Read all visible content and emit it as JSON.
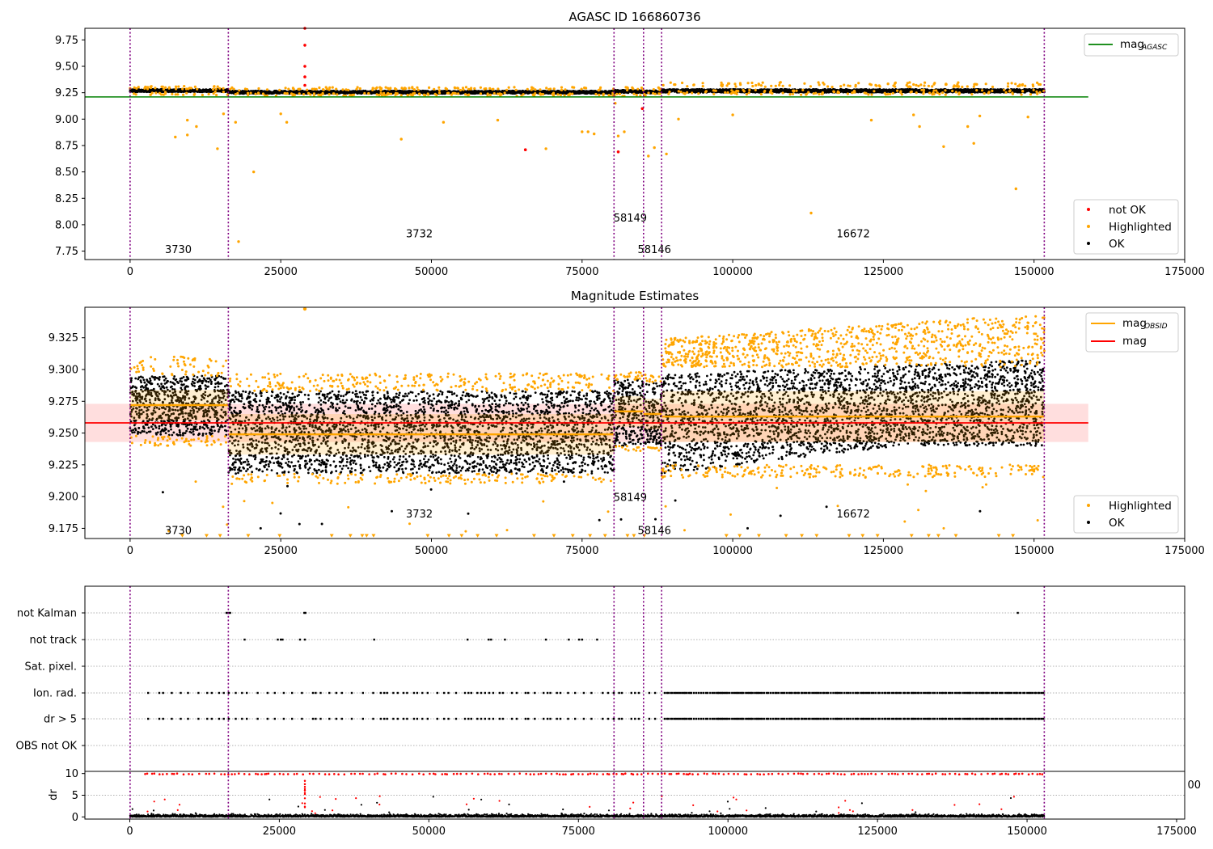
{
  "chart_data": [
    {
      "id": "agasc",
      "type": "scatter",
      "title": "AGASC ID 166860736",
      "xlim": [
        -7500,
        175000
      ],
      "ylim": [
        7.67,
        9.86
      ],
      "xticks": [
        "0",
        "25000",
        "50000",
        "75000",
        "100000",
        "125000",
        "150000",
        "175000"
      ],
      "yticks": [
        "7.75",
        "8.00",
        "8.25",
        "8.50",
        "8.75",
        "9.00",
        "9.25",
        "9.50",
        "9.75"
      ],
      "obsid_boundaries": [
        0,
        16300,
        80300,
        85200,
        88200,
        151700
      ],
      "obsid_labels": [
        {
          "text": "3730",
          "x": 8000,
          "y": 7.76
        },
        {
          "text": "3732",
          "x": 48000,
          "y": 7.91
        },
        {
          "text": "58149",
          "x": 83000,
          "y": 8.06
        },
        {
          "text": "58146",
          "x": 87000,
          "y": 7.76
        },
        {
          "text": "16672",
          "x": 120000,
          "y": 7.91
        }
      ],
      "mag_agasc": 9.21,
      "legend": {
        "top_right": [
          {
            "label": "mag",
            "sub": "AGASC",
            "color": "#008000"
          }
        ],
        "bottom_right": [
          {
            "label": "not OK",
            "color": "#ff0000"
          },
          {
            "label": "Highlighted",
            "color": "#ffa500"
          },
          {
            "label": "OK",
            "color": "#000000"
          }
        ]
      },
      "segments": [
        {
          "x0": 0,
          "x1": 16300,
          "ok_center": 9.27,
          "ok_spread": 0.012,
          "hl_center": 9.27,
          "hl_spread": 0.02
        },
        {
          "x0": 16300,
          "x1": 80300,
          "ok_center": 9.255,
          "ok_spread": 0.012,
          "hl_center": 9.26,
          "hl_spread": 0.02
        },
        {
          "x0": 80300,
          "x1": 85200,
          "ok_center": 9.262,
          "ok_spread": 0.012,
          "hl_center": 9.26,
          "hl_spread": 0.02
        },
        {
          "x0": 85200,
          "x1": 88200,
          "ok_center": 9.258,
          "ok_spread": 0.012,
          "hl_center": 9.26,
          "hl_spread": 0.02
        },
        {
          "x0": 88200,
          "x1": 151700,
          "ok_center": 9.268,
          "ok_spread": 0.014,
          "hl_center": 9.29,
          "hl_spread": 0.03
        }
      ],
      "outliers_highlighted": [
        [
          7500,
          8.83
        ],
        [
          9500,
          8.85
        ],
        [
          9500,
          8.99
        ],
        [
          11000,
          8.93
        ],
        [
          14500,
          8.72
        ],
        [
          15500,
          9.05
        ],
        [
          17500,
          8.97
        ],
        [
          18000,
          7.84
        ],
        [
          20500,
          8.5
        ],
        [
          25000,
          9.05
        ],
        [
          26000,
          8.97
        ],
        [
          45000,
          8.81
        ],
        [
          52000,
          8.97
        ],
        [
          61000,
          8.99
        ],
        [
          69000,
          8.72
        ],
        [
          75000,
          8.88
        ],
        [
          76000,
          8.88
        ],
        [
          77000,
          8.86
        ],
        [
          80500,
          9.15
        ],
        [
          81000,
          8.84
        ],
        [
          82000,
          8.88
        ],
        [
          86000,
          8.65
        ],
        [
          87000,
          8.73
        ],
        [
          89000,
          8.67
        ],
        [
          91000,
          9.0
        ],
        [
          100000,
          9.04
        ],
        [
          113000,
          8.11
        ],
        [
          123000,
          8.99
        ],
        [
          130000,
          9.04
        ],
        [
          131000,
          8.93
        ],
        [
          135000,
          8.74
        ],
        [
          139000,
          8.93
        ],
        [
          140000,
          8.77
        ],
        [
          141000,
          9.03
        ],
        [
          147000,
          8.34
        ],
        [
          149000,
          9.02
        ]
      ],
      "outliers_not_ok": [
        [
          29000,
          9.86
        ],
        [
          29000,
          9.7
        ],
        [
          29000,
          9.5
        ],
        [
          29000,
          9.4
        ],
        [
          29000,
          9.32
        ],
        [
          65600,
          8.71
        ],
        [
          81000,
          8.69
        ],
        [
          85000,
          9.1
        ]
      ]
    },
    {
      "id": "mag_estimates",
      "type": "scatter",
      "title": "Magnitude Estimates",
      "xlim": [
        -7500,
        175000
      ],
      "ylim": [
        9.167,
        9.349
      ],
      "xticks": [
        "0",
        "25000",
        "50000",
        "75000",
        "100000",
        "125000",
        "150000",
        "175000"
      ],
      "yticks": [
        "9.175",
        "9.200",
        "9.225",
        "9.250",
        "9.275",
        "9.300",
        "9.325"
      ],
      "obsid_boundaries": [
        0,
        16300,
        80300,
        85200,
        88200,
        151700
      ],
      "obsid_labels": [
        {
          "text": "3730",
          "x": 8000,
          "y": 9.173
        },
        {
          "text": "3732",
          "x": 48000,
          "y": 9.186
        },
        {
          "text": "58149",
          "x": 83000,
          "y": 9.199
        },
        {
          "text": "58146",
          "x": 87000,
          "y": 9.173
        },
        {
          "text": "16672",
          "x": 120000,
          "y": 9.186
        }
      ],
      "mag": 9.258,
      "mag_band": [
        9.243,
        9.273
      ],
      "mag_obsid": [
        {
          "x0": 0,
          "x1": 16300,
          "y": 9.272,
          "std": 0.012
        },
        {
          "x0": 16300,
          "x1": 80300,
          "y": 9.249,
          "std": 0.016
        },
        {
          "x0": 80300,
          "x1": 85200,
          "y": 9.267,
          "std": 0.012
        },
        {
          "x0": 85200,
          "x1": 88200,
          "y": 9.265,
          "std": 0.012
        },
        {
          "x0": 88200,
          "x1": 151700,
          "y": 9.263,
          "std": 0.02
        }
      ],
      "legend": {
        "top_right": [
          {
            "label": "mag",
            "sub": "OBSID",
            "color": "#ffa500"
          },
          {
            "label": "mag",
            "sub": "",
            "color": "#ff0000"
          }
        ],
        "bottom_right": [
          {
            "label": "Highlighted",
            "color": "#ffa500"
          },
          {
            "label": "OK",
            "color": "#000000"
          }
        ]
      }
    },
    {
      "id": "flags",
      "type": "scatter",
      "title": "",
      "xlim": [
        -7500,
        175000
      ],
      "categories": [
        "not Kalman",
        "not track",
        "Sat. pixel.",
        "Ion. rad.",
        "dr > 5",
        "OBS not OK"
      ],
      "dr_ylabel": "dr",
      "dr_ylim": [
        -0.5,
        10.5
      ],
      "dr_yticks": [
        "0",
        "5",
        "10"
      ],
      "xticks": [
        "0",
        "25000",
        "50000",
        "75000",
        "100000",
        "125000",
        "150000",
        "175000"
      ],
      "overlap_text": "00",
      "obsid_boundaries": [
        0,
        16300,
        80300,
        85200,
        88200,
        151700
      ],
      "flag_points": {
        "not Kalman": [
          16000,
          16300,
          16600,
          28900,
          29100,
          147300
        ],
        "not track": [
          19000,
          24500,
          25000,
          25300,
          28200,
          29000,
          40500,
          56000,
          59500,
          59900,
          62200,
          69000,
          72800,
          74500,
          75000,
          77500
        ],
        "Sat. pixel.": [],
        "Ion. rad.": [],
        "dr > 5": [],
        "OBS not OK": []
      }
    }
  ]
}
